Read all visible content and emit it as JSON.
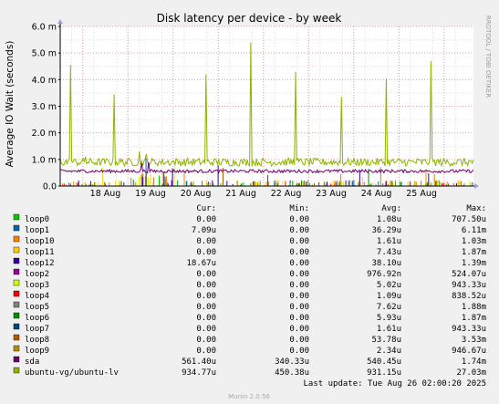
{
  "chart_data": {
    "type": "line",
    "title": "Disk latency per device - by week",
    "ylabel": "Average IO Wait (seconds)",
    "xlabel": "",
    "side_label": "RRDTOOL / TOBI OETIKER",
    "footer": "Munin 2.0.56",
    "ylim": [
      0,
      6.0
    ],
    "y_ticks": [
      {
        "value": 0,
        "label": "0.0"
      },
      {
        "value": 1,
        "label": "1.0 m"
      },
      {
        "value": 2,
        "label": "2.0 m"
      },
      {
        "value": 3,
        "label": "3.0 m"
      },
      {
        "value": 4,
        "label": "4.0 m"
      },
      {
        "value": 5,
        "label": "5.0 m"
      },
      {
        "value": 6,
        "label": "6.0 m"
      }
    ],
    "x_range": [
      0,
      9.15
    ],
    "x_ticks": [
      {
        "value": 1,
        "label": "18 Aug"
      },
      {
        "value": 2,
        "label": "19 Aug"
      },
      {
        "value": 3,
        "label": "20 Aug"
      },
      {
        "value": 4,
        "label": "21 Aug"
      },
      {
        "value": 5,
        "label": "22 Aug"
      },
      {
        "value": 6,
        "label": "23 Aug"
      },
      {
        "value": 7,
        "label": "24 Aug"
      },
      {
        "value": 8,
        "label": "25 Aug"
      }
    ],
    "grid": true,
    "legend_header": {
      "cur": "Cur:",
      "min": "Min:",
      "avg": "Avg:",
      "max": "Max:"
    },
    "legend": [
      {
        "name": "loop0",
        "color": "#00cc00",
        "cur": "0.00",
        "min": "0.00",
        "avg": "1.08u",
        "max": "707.50u"
      },
      {
        "name": "loop1",
        "color": "#0066b3",
        "cur": "7.09u",
        "min": "0.00",
        "avg": "36.29u",
        "max": "6.11m"
      },
      {
        "name": "loop10",
        "color": "#ff8000",
        "cur": "0.00",
        "min": "0.00",
        "avg": "1.61u",
        "max": "1.03m"
      },
      {
        "name": "loop11",
        "color": "#ffcc00",
        "cur": "0.00",
        "min": "0.00",
        "avg": "7.43u",
        "max": "1.87m"
      },
      {
        "name": "loop12",
        "color": "#330099",
        "cur": "18.67u",
        "min": "0.00",
        "avg": "38.10u",
        "max": "1.39m"
      },
      {
        "name": "loop2",
        "color": "#990099",
        "cur": "0.00",
        "min": "0.00",
        "avg": "976.92n",
        "max": "524.07u"
      },
      {
        "name": "loop3",
        "color": "#ccff00",
        "cur": "0.00",
        "min": "0.00",
        "avg": "5.02u",
        "max": "943.33u"
      },
      {
        "name": "loop4",
        "color": "#ff0000",
        "cur": "0.00",
        "min": "0.00",
        "avg": "1.09u",
        "max": "838.52u"
      },
      {
        "name": "loop5",
        "color": "#808080",
        "cur": "0.00",
        "min": "0.00",
        "avg": "7.62u",
        "max": "1.88m"
      },
      {
        "name": "loop6",
        "color": "#008f00",
        "cur": "0.00",
        "min": "0.00",
        "avg": "5.93u",
        "max": "1.87m"
      },
      {
        "name": "loop7",
        "color": "#00487d",
        "cur": "0.00",
        "min": "0.00",
        "avg": "1.61u",
        "max": "943.33u"
      },
      {
        "name": "loop8",
        "color": "#b35a00",
        "cur": "0.00",
        "min": "0.00",
        "avg": "53.78u",
        "max": "3.53m"
      },
      {
        "name": "loop9",
        "color": "#b38f00",
        "cur": "0.00",
        "min": "0.00",
        "avg": "2.34u",
        "max": "946.67u"
      },
      {
        "name": "sda",
        "color": "#6b006b",
        "cur": "561.40u",
        "min": "340.33u",
        "avg": "540.45u",
        "max": "1.74m"
      },
      {
        "name": "ubuntu-vg/ubuntu-lv",
        "color": "#8fb300",
        "cur": "934.77u",
        "min": "450.38u",
        "avg": "931.15u",
        "max": "27.03m"
      }
    ],
    "last_update": "Last update: Tue Aug 26 02:00:20 2025",
    "series": [
      {
        "name": "ubuntu-vg/ubuntu-lv",
        "color": "#8fb300",
        "baseline": 0.9,
        "noise": 0.15,
        "spikes": [
          {
            "x": 0.22,
            "y": 4.55
          },
          {
            "x": 1.2,
            "y": 3.45
          },
          {
            "x": 2.25,
            "y": 3.15
          },
          {
            "x": 3.22,
            "y": 4.2
          },
          {
            "x": 4.22,
            "y": 5.4
          },
          {
            "x": 5.22,
            "y": 4.3
          },
          {
            "x": 6.22,
            "y": 3.35
          },
          {
            "x": 7.22,
            "y": 4.05
          },
          {
            "x": 8.22,
            "y": 4.7
          },
          {
            "x": 1.75,
            "y": 1.3
          },
          {
            "x": 1.9,
            "y": 1.2
          },
          {
            "x": 0.55,
            "y": 1.1
          },
          {
            "x": 5.55,
            "y": 1.05
          }
        ]
      },
      {
        "name": "sda",
        "color": "#6b006b",
        "baseline": 0.56,
        "noise": 0.06,
        "spikes": [
          {
            "x": 1.8,
            "y": 0.85
          },
          {
            "x": 1.95,
            "y": 0.9
          }
        ]
      }
    ]
  }
}
